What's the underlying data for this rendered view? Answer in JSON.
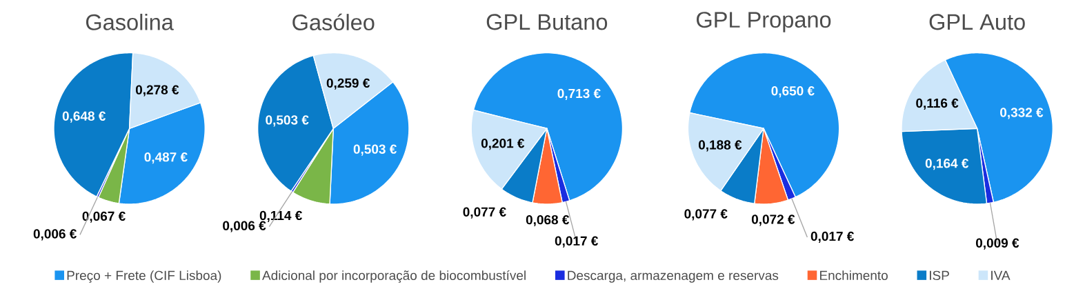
{
  "chart_data": [
    {
      "type": "pie",
      "title": "Gasolina",
      "legend": "bottom",
      "categories": [
        "Preço + Frete (CIF Lisboa)",
        "Adicional por incorporação de biocombustível",
        "Descarga, armazenagem e reservas",
        "Enchimento",
        "ISP",
        "IVA"
      ],
      "values": [
        0.487,
        0.067,
        0.006,
        null,
        0.648,
        0.278
      ],
      "colors": [
        "#1a94f0",
        "#7ab648",
        "#1a2de0",
        "#ff6633",
        "#0a7cc8",
        "#cce6fa"
      ],
      "value_labels": [
        "0,487 €",
        "0,067 €",
        "0,006 €",
        null,
        "0,648 €",
        "0,278 €"
      ]
    },
    {
      "type": "pie",
      "title": "Gasóleo",
      "categories": [
        null,
        null,
        null,
        null,
        null,
        null
      ],
      "values": [
        0.503,
        0.114,
        0.006,
        null,
        0.503,
        0.259
      ],
      "colors": [
        "#1a94f0",
        "#7ab648",
        "#1a2de0",
        "#ff6633",
        "#0a7cc8",
        "#cce6fa"
      ],
      "value_labels": [
        "0,503 €",
        "0,114 €",
        "0,006 €",
        null,
        "0,503 €",
        "0,259 €"
      ]
    },
    {
      "type": "pie",
      "title": "GPL Butano",
      "categories": [
        null,
        null,
        null,
        null,
        null,
        null
      ],
      "values": [
        0.713,
        null,
        0.017,
        0.068,
        0.077,
        0.201
      ],
      "colors": [
        "#1a94f0",
        "#7ab648",
        "#1a2de0",
        "#ff6633",
        "#0a7cc8",
        "#cce6fa"
      ],
      "value_labels": [
        "0,713 €",
        null,
        "0,017 €",
        "0,068 €",
        "0,077 €",
        "0,201 €"
      ]
    },
    {
      "type": "pie",
      "title": "GPL Propano",
      "categories": [
        null,
        null,
        null,
        null,
        null,
        null
      ],
      "values": [
        0.65,
        null,
        0.017,
        0.072,
        0.077,
        0.188
      ],
      "colors": [
        "#1a94f0",
        "#7ab648",
        "#1a2de0",
        "#ff6633",
        "#0a7cc8",
        "#cce6fa"
      ],
      "value_labels": [
        "0,650 €",
        null,
        "0,017 €",
        "0,072 €",
        "0,077 €",
        "0,188 €"
      ]
    },
    {
      "type": "pie",
      "title": "GPL Auto",
      "categories": [
        null,
        null,
        null,
        null,
        null,
        null
      ],
      "values": [
        0.332,
        null,
        0.009,
        null,
        0.164,
        0.116
      ],
      "colors": [
        "#1a94f0",
        "#7ab648",
        "#1a2de0",
        "#ff6633",
        "#0a7cc8",
        "#cce6fa"
      ],
      "value_labels": [
        "0,332 €",
        null,
        "0,009 €",
        null,
        "0,164 €",
        "0,116 €"
      ]
    }
  ]
}
